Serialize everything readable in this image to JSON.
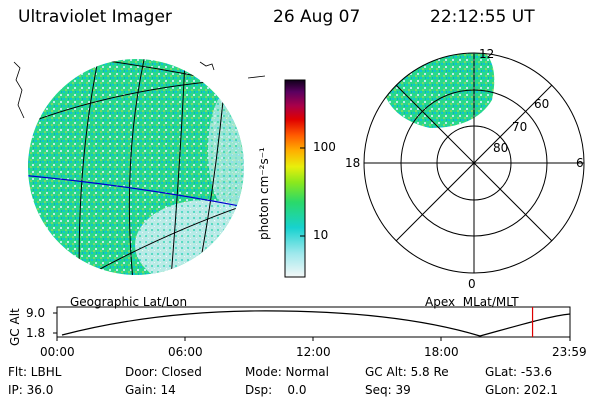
{
  "header": {
    "instrument": "Ultraviolet Imager",
    "date": "26 Aug 07",
    "time": "22:12:55 UT"
  },
  "geo_panel": {
    "label": "Geographic Lat/Lon"
  },
  "colorbar": {
    "label": "photon cm⁻²s⁻¹",
    "ticks": [
      "100",
      "10"
    ]
  },
  "polar_panel": {
    "label": "Apex  MLat/MLT",
    "mlt_labels": [
      "12",
      "18",
      "6",
      "0"
    ],
    "lat_labels": [
      "60",
      "70",
      "80"
    ]
  },
  "altitude_plot": {
    "ylabel": "GC Alt",
    "yticks": [
      "9.0",
      "1.8"
    ],
    "xticks": [
      "00:00",
      "06:00",
      "12:00",
      "18:00",
      "23:59"
    ],
    "current_time_fraction": 0.927
  },
  "status": {
    "flt": "Flt: LBHL",
    "ip": "IP: 36.0",
    "door": "Door: Closed",
    "gain": "Gain: 14",
    "mode": "Mode: Normal",
    "dsp": "Dsp:    0.0",
    "gcalt": "GC Alt: 5.8 Re",
    "seq": "Seq: 39",
    "glat": "GLat: -53.6",
    "glon": "GLon: 202.1"
  },
  "colors": {
    "accent_red": "#dd0000",
    "blue_line": "#0000cc"
  }
}
